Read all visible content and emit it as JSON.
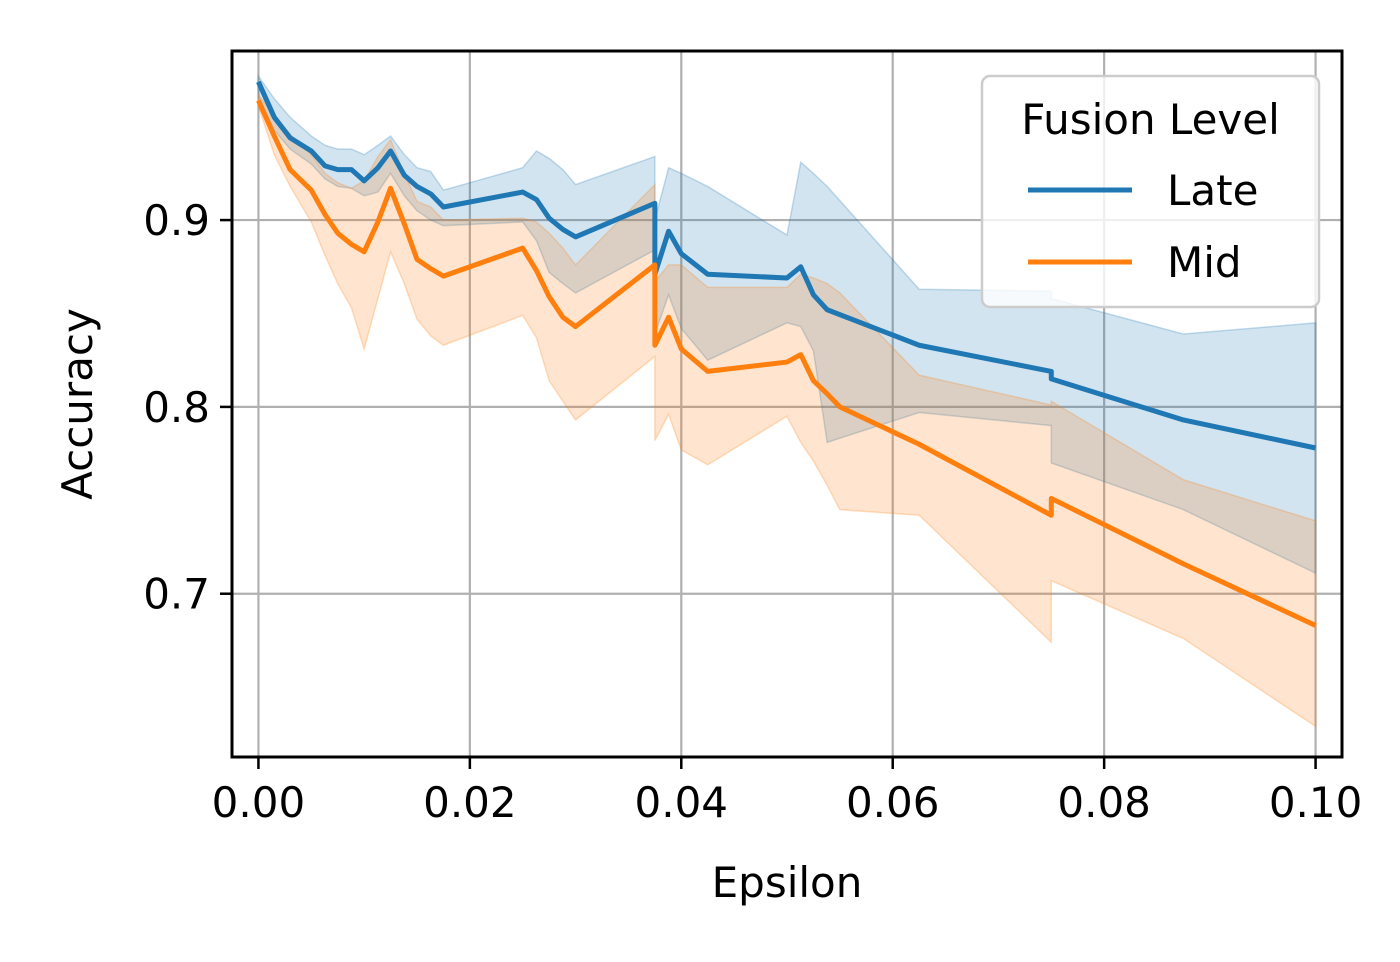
{
  "chart_data": {
    "type": "line",
    "title": "",
    "xlabel": "Epsilon",
    "ylabel": "Accuracy",
    "xlim": [
      -0.0025,
      0.1025
    ],
    "ylim": [
      0.6126,
      0.9905
    ],
    "xticks": [
      0.0,
      0.02,
      0.04,
      0.06,
      0.08,
      0.1
    ],
    "xtick_labels": [
      "0.00",
      "0.02",
      "0.04",
      "0.06",
      "0.08",
      "0.10"
    ],
    "yticks": [
      0.7,
      0.8,
      0.9
    ],
    "ytick_labels": [
      "0.7",
      "0.8",
      "0.9"
    ],
    "grid": true,
    "legend": {
      "title": "Fusion Level",
      "position": "top-right"
    },
    "series": [
      {
        "name": "Late",
        "color": "#1f77b4",
        "x": [
          0.0,
          0.0015,
          0.003,
          0.005,
          0.0063,
          0.0075,
          0.0088,
          0.01,
          0.0113,
          0.0125,
          0.0138,
          0.015,
          0.0163,
          0.0175,
          0.025,
          0.0263,
          0.0275,
          0.0288,
          0.03,
          0.0375,
          0.0375,
          0.0388,
          0.04,
          0.0425,
          0.05,
          0.0513,
          0.0525,
          0.0538,
          0.0625,
          0.075,
          0.075,
          0.0875,
          0.1
        ],
        "y": [
          0.974,
          0.955,
          0.944,
          0.937,
          0.929,
          0.927,
          0.927,
          0.921,
          0.928,
          0.937,
          0.924,
          0.918,
          0.914,
          0.907,
          0.915,
          0.911,
          0.901,
          0.895,
          0.891,
          0.909,
          0.871,
          0.894,
          0.882,
          0.871,
          0.869,
          0.875,
          0.86,
          0.852,
          0.833,
          0.819,
          0.815,
          0.793,
          0.778
        ],
        "upper": [
          0.977,
          0.965,
          0.955,
          0.945,
          0.94,
          0.938,
          0.938,
          0.935,
          0.94,
          0.945,
          0.935,
          0.928,
          0.926,
          0.916,
          0.928,
          0.937,
          0.933,
          0.927,
          0.919,
          0.934,
          0.9,
          0.928,
          0.925,
          0.918,
          0.892,
          0.931,
          0.925,
          0.918,
          0.863,
          0.862,
          0.858,
          0.839,
          0.845
        ],
        "lower": [
          0.966,
          0.948,
          0.938,
          0.93,
          0.922,
          0.918,
          0.917,
          0.913,
          0.915,
          0.925,
          0.913,
          0.905,
          0.9,
          0.897,
          0.899,
          0.889,
          0.872,
          0.866,
          0.861,
          0.884,
          0.839,
          0.86,
          0.842,
          0.825,
          0.845,
          0.843,
          0.83,
          0.781,
          0.797,
          0.79,
          0.77,
          0.745,
          0.711
        ]
      },
      {
        "name": "Mid",
        "color": "#ff7f0e",
        "x": [
          0.0,
          0.0015,
          0.003,
          0.005,
          0.0063,
          0.0075,
          0.0088,
          0.01,
          0.0113,
          0.0125,
          0.0138,
          0.015,
          0.0163,
          0.0175,
          0.025,
          0.0263,
          0.0275,
          0.0288,
          0.03,
          0.0375,
          0.0375,
          0.0388,
          0.04,
          0.0425,
          0.05,
          0.0513,
          0.0525,
          0.0538,
          0.055,
          0.0625,
          0.075,
          0.075,
          0.0875,
          0.1
        ],
        "y": [
          0.964,
          0.945,
          0.927,
          0.916,
          0.903,
          0.893,
          0.887,
          0.883,
          0.899,
          0.917,
          0.898,
          0.879,
          0.874,
          0.87,
          0.885,
          0.873,
          0.859,
          0.848,
          0.843,
          0.876,
          0.833,
          0.848,
          0.831,
          0.819,
          0.824,
          0.828,
          0.814,
          0.807,
          0.8,
          0.78,
          0.742,
          0.751,
          0.716,
          0.683
        ],
        "upper": [
          0.967,
          0.956,
          0.946,
          0.935,
          0.925,
          0.92,
          0.917,
          0.921,
          0.934,
          0.943,
          0.925,
          0.91,
          0.907,
          0.9,
          0.901,
          0.899,
          0.893,
          0.885,
          0.876,
          0.919,
          0.867,
          0.876,
          0.876,
          0.864,
          0.864,
          0.871,
          0.869,
          0.866,
          0.861,
          0.817,
          0.801,
          0.803,
          0.761,
          0.739
        ],
        "lower": [
          0.961,
          0.935,
          0.918,
          0.899,
          0.881,
          0.866,
          0.853,
          0.831,
          0.858,
          0.883,
          0.866,
          0.847,
          0.838,
          0.833,
          0.849,
          0.837,
          0.814,
          0.803,
          0.793,
          0.827,
          0.782,
          0.796,
          0.777,
          0.769,
          0.795,
          0.781,
          0.771,
          0.758,
          0.745,
          0.742,
          0.674,
          0.707,
          0.676,
          0.629
        ]
      }
    ]
  }
}
